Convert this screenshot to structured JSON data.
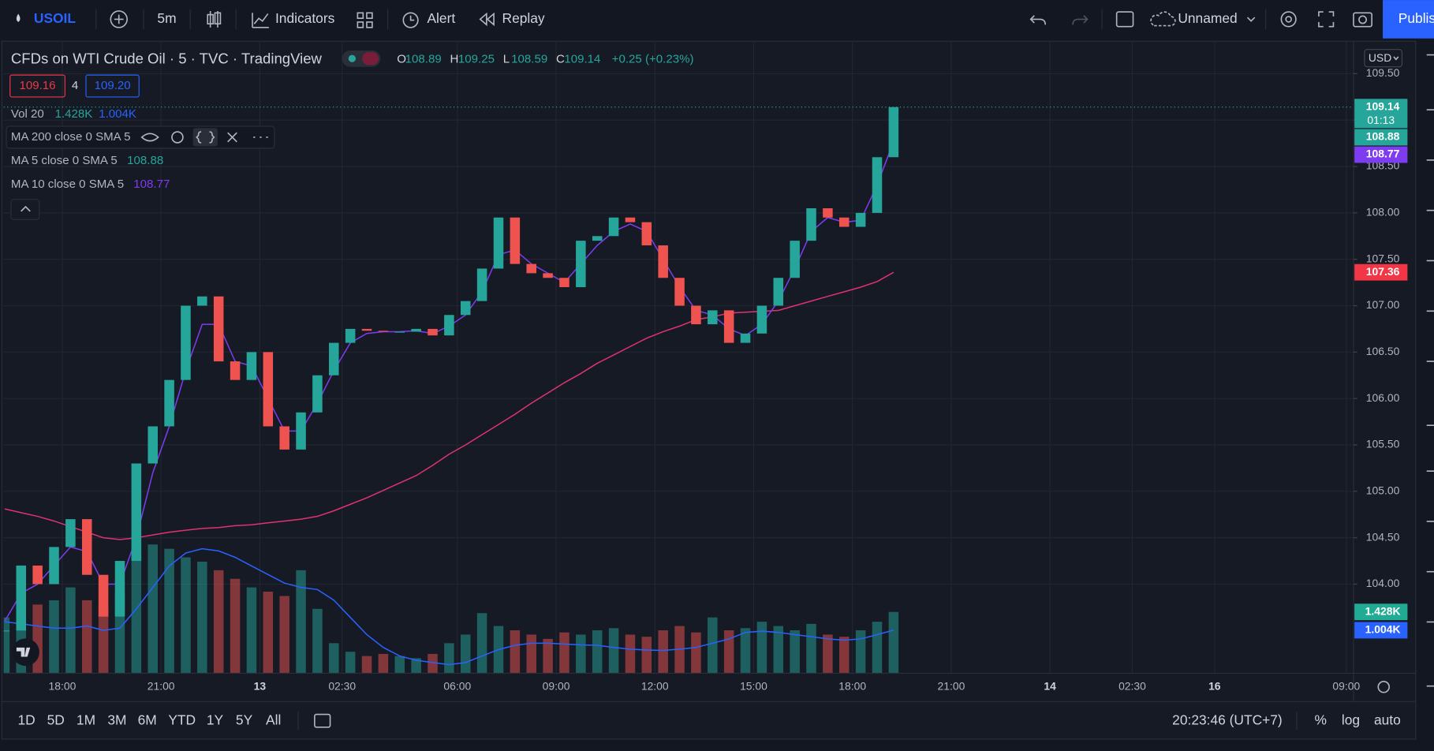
{
  "toolbar": {
    "symbol": "USOIL",
    "interval": "5m",
    "indicators": "Indicators",
    "alert": "Alert",
    "replay": "Replay",
    "layout": "Unnamed",
    "publish": "Publish"
  },
  "legend": {
    "title": "CFDs on WTI Crude Oil · 5 · TVC · TradingView",
    "ohlc": [
      [
        "O",
        "108.89"
      ],
      [
        "H",
        "109.25"
      ],
      [
        "L",
        "108.59"
      ],
      [
        "C",
        "109.14"
      ]
    ],
    "change": "+0.25 (+0.23%)",
    "bid": "109.16",
    "spread": "4",
    "ask": "109.20",
    "volume": {
      "name": "Vol 20",
      "value": "1.428K",
      "ma": "1.004K"
    },
    "ma200": "MA 200 close 0 SMA 5",
    "ma5": {
      "name": "MA 5 close 0 SMA 5",
      "value": "108.88"
    },
    "ma10": {
      "name": "MA 10 close 0 SMA 5",
      "value": "108.77"
    }
  },
  "price_axis": {
    "currency": "USD",
    "last": "109.14",
    "countdown": "01:13",
    "ma5": "108.88",
    "ma10": "108.77",
    "ma200": "107.36",
    "volume": "1.428K",
    "volume_ma": "1.004K"
  },
  "chart": {
    "type": "candlestick",
    "x": [
      -1.75,
      -1.25,
      -0.75,
      -0.25,
      0.25,
      0.75,
      1.25,
      1.75,
      2.25,
      2.75,
      3.25,
      3.75,
      4.25,
      4.75,
      5.25,
      5.75,
      6.25,
      6.75,
      7.25,
      7.75,
      8.25,
      8.75,
      9.25,
      9.75,
      10.25,
      10.75,
      11.25,
      11.75,
      12.25,
      12.75,
      13.25,
      13.75,
      14.25,
      14.75,
      15.25,
      15.75,
      16.25,
      16.75,
      17.25,
      17.75,
      18.25,
      18.75,
      19.25,
      19.75,
      20.25,
      20.75,
      21.25,
      21.75,
      22.25,
      22.75,
      23.25,
      23.75,
      24.25,
      24.75,
      25.25
    ],
    "close": [
      103.5,
      104.2,
      104.0,
      104.4,
      104.7,
      104.1,
      103.65,
      104.25,
      105.3,
      105.7,
      106.2,
      107.0,
      107.1,
      106.4,
      106.2,
      106.5,
      105.7,
      105.45,
      105.85,
      106.25,
      106.6,
      106.75,
      106.73,
      106.72,
      106.72,
      106.75,
      106.68,
      106.9,
      107.05,
      107.4,
      107.95,
      107.45,
      107.35,
      107.3,
      107.2,
      107.7,
      107.75,
      107.95,
      107.9,
      107.65,
      107.3,
      107.0,
      106.8,
      106.95,
      106.6,
      106.7,
      107.0,
      107.3,
      107.7,
      108.05,
      107.95,
      107.85,
      108.0,
      108.6,
      109.14
    ],
    "ma10": [
      103.6,
      103.9,
      104.0,
      104.2,
      104.4,
      104.35,
      104.0,
      104.0,
      104.5,
      105.2,
      105.7,
      106.3,
      106.8,
      106.8,
      106.4,
      106.35,
      106.0,
      105.65,
      105.65,
      105.95,
      106.3,
      106.6,
      106.7,
      106.72,
      106.72,
      106.73,
      106.7,
      106.78,
      106.9,
      107.15,
      107.55,
      107.6,
      107.45,
      107.35,
      107.25,
      107.45,
      107.65,
      107.8,
      107.88,
      107.8,
      107.5,
      107.2,
      106.95,
      106.9,
      106.75,
      106.68,
      106.8,
      107.05,
      107.4,
      107.8,
      107.95,
      107.9,
      107.92,
      108.3,
      108.77
    ],
    "ma200": [
      104.81,
      104.77,
      104.73,
      104.68,
      104.62,
      104.56,
      104.5,
      104.48,
      104.5,
      104.53,
      104.56,
      104.58,
      104.6,
      104.61,
      104.63,
      104.64,
      104.66,
      104.68,
      104.7,
      104.73,
      104.79,
      104.86,
      104.93,
      105.01,
      105.09,
      105.17,
      105.28,
      105.4,
      105.5,
      105.61,
      105.72,
      105.83,
      105.95,
      106.06,
      106.17,
      106.27,
      106.38,
      106.47,
      106.56,
      106.65,
      106.72,
      106.78,
      106.85,
      106.88,
      106.92,
      106.93,
      106.94,
      106.95,
      107.0,
      107.05,
      107.1,
      107.15,
      107.2,
      107.26,
      107.36
    ],
    "volume": [
      1300,
      1500,
      1600,
      1700,
      2000,
      1700,
      1500,
      1900,
      2800,
      3000,
      2900,
      2700,
      2600,
      2400,
      2200,
      2000,
      1900,
      1800,
      2400,
      1500,
      700,
      500,
      400,
      450,
      400,
      350,
      450,
      700,
      900,
      1400,
      1100,
      1000,
      900,
      800,
      950,
      900,
      1000,
      1050,
      900,
      850,
      1000,
      1100,
      950,
      1300,
      1000,
      1050,
      1200,
      1100,
      1000,
      1150,
      900,
      850,
      1000,
      1200,
      1428
    ],
    "volume_ma": [
      1200,
      1150,
      1100,
      1050,
      1050,
      1100,
      1000,
      1050,
      1500,
      2000,
      2500,
      2800,
      2900,
      2850,
      2700,
      2500,
      2300,
      2100,
      2000,
      1950,
      1700,
      1300,
      900,
      600,
      400,
      300,
      250,
      200,
      250,
      400,
      550,
      650,
      700,
      700,
      680,
      660,
      650,
      600,
      560,
      540,
      530,
      560,
      600,
      700,
      800,
      950,
      980,
      950,
      900,
      850,
      800,
      770,
      800,
      900,
      1004
    ],
    "up_color": "#26a69a",
    "down_color": "#ef5350",
    "ma10_color": "#7e3cf0",
    "ma200_color": "#e0326e",
    "volume_ma_color": "#2962ff",
    "xlim": [
      -1.78,
      39.22
    ],
    "xticks": [
      {
        "value": 0,
        "label": "18:00"
      },
      {
        "value": 3,
        "label": "21:00"
      },
      {
        "value": 6,
        "label": "13"
      },
      {
        "value": 8.5,
        "label": "02:30"
      },
      {
        "value": 12,
        "label": "06:00"
      },
      {
        "value": 15,
        "label": "09:00"
      },
      {
        "value": 18,
        "label": "12:00"
      },
      {
        "value": 21,
        "label": "15:00"
      },
      {
        "value": 24,
        "label": "18:00"
      },
      {
        "value": 27,
        "label": "21:00"
      },
      {
        "value": 30,
        "label": "14"
      },
      {
        "value": 32.5,
        "label": "02:30"
      },
      {
        "value": 35,
        "label": "16"
      },
      {
        "value": 39,
        "label": "09:00"
      }
    ],
    "ylim": [
      103.04,
      109.85
    ],
    "yticks": [
      {
        "value": 104,
        "label": "104.00"
      },
      {
        "value": 104.5,
        "label": "104.50"
      },
      {
        "value": 105,
        "label": "105.00"
      },
      {
        "value": 105.5,
        "label": "105.50"
      },
      {
        "value": 106,
        "label": "106.00"
      },
      {
        "value": 106.5,
        "label": "106.50"
      },
      {
        "value": 107,
        "label": "107.00"
      },
      {
        "value": 107.5,
        "label": "107.50"
      },
      {
        "value": 108,
        "label": "108.00"
      },
      {
        "value": 108.5,
        "label": "108.50"
      },
      {
        "value": 109,
        "label": "109.00"
      },
      {
        "value": 109.5,
        "label": "109.50"
      }
    ],
    "vlim": [
      0,
      14728
    ],
    "grid": true
  },
  "bottom_bar": {
    "ranges": [
      "1D",
      "5D",
      "1M",
      "3M",
      "6M",
      "YTD",
      "1Y",
      "5Y",
      "All"
    ],
    "time": "20:23:46 (UTC+7)",
    "percent": "%",
    "log": "log",
    "auto": "auto"
  }
}
